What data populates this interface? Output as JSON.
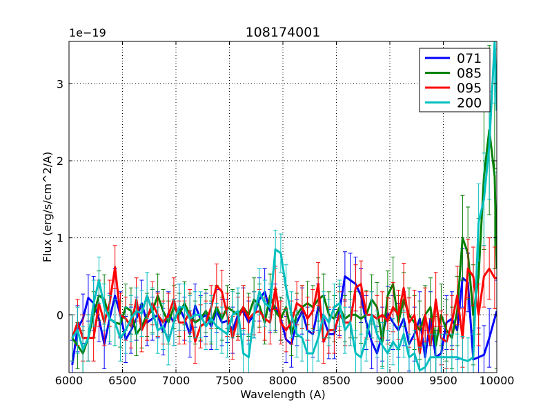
{
  "chart_data": {
    "type": "line",
    "title": "108174001",
    "xlabel": "Wavelength (A)",
    "ylabel": "Flux (erg/s/cm^2/A)",
    "y_scale_label": "1e−19",
    "xlim": [
      6000,
      10000
    ],
    "ylim": [
      -0.75,
      3.55
    ],
    "xticks": [
      6000,
      6500,
      7000,
      7500,
      8000,
      8500,
      9000,
      9500,
      10000
    ],
    "yticks": [
      0,
      1,
      2,
      3
    ],
    "grid": true,
    "legend_position": "top-right",
    "series": [
      {
        "name": "071",
        "color": "#0000ff",
        "x": [
          6030,
          6080,
          6130,
          6180,
          6230,
          6280,
          6330,
          6380,
          6430,
          6480,
          6530,
          6580,
          6630,
          6680,
          6730,
          6780,
          6830,
          6880,
          6930,
          6980,
          7030,
          7080,
          7130,
          7180,
          7230,
          7280,
          7330,
          7380,
          7430,
          7480,
          7530,
          7580,
          7630,
          7680,
          7730,
          7780,
          7830,
          7880,
          7930,
          7980,
          8030,
          8080,
          8130,
          8180,
          8230,
          8280,
          8330,
          8380,
          8430,
          8480,
          8530,
          8580,
          8630,
          8680,
          8730,
          8780,
          8830,
          8880,
          8930,
          8980,
          9030,
          9080,
          9130,
          9180,
          9230,
          9280,
          9330,
          9380,
          9430,
          9480,
          9530,
          9580,
          9630,
          9680,
          9730,
          9780,
          9830,
          9880,
          9930,
          10000
        ],
        "values": [
          -0.65,
          -0.18,
          -0.05,
          0.22,
          0.15,
          -0.05,
          -0.38,
          -0.05,
          0.25,
          0.0,
          -0.32,
          -0.2,
          -0.05,
          0.15,
          -0.1,
          -0.05,
          0.0,
          -0.22,
          0.02,
          -0.1,
          0.1,
          -0.05,
          -0.25,
          0.12,
          -0.05,
          0.0,
          -0.15,
          0.05,
          -0.1,
          -0.08,
          -0.2,
          0.0,
          0.05,
          -0.1,
          0.0,
          0.2,
          0.3,
          0.05,
          0.1,
          -0.05,
          -0.32,
          -0.38,
          -0.1,
          0.05,
          -0.2,
          -0.25,
          0.1,
          -0.05,
          -0.25,
          -0.25,
          0.05,
          0.5,
          0.45,
          0.4,
          0.25,
          -0.1,
          -0.35,
          -0.5,
          -0.25,
          0.02,
          -0.1,
          -0.2,
          -0.05,
          -0.38,
          -0.25,
          -0.05,
          -0.55,
          -0.05,
          -0.55,
          -0.5,
          -0.1,
          -0.05,
          -0.2,
          0.48,
          0.42,
          -0.58,
          -0.55,
          -0.52,
          -0.3,
          0.05
        ],
        "errors": [
          0.32,
          0.3,
          0.32,
          0.3,
          0.35,
          0.3,
          0.32,
          0.33,
          0.35,
          0.3,
          0.3,
          0.3,
          0.28,
          0.3,
          0.3,
          0.28,
          0.3,
          0.3,
          0.28,
          0.3,
          0.3,
          0.28,
          0.3,
          0.28,
          0.3,
          0.28,
          0.3,
          0.28,
          0.3,
          0.28,
          0.3,
          0.28,
          0.3,
          0.28,
          0.3,
          0.28,
          0.3,
          0.28,
          0.3,
          0.28,
          0.3,
          0.3,
          0.3,
          0.3,
          0.3,
          0.3,
          0.3,
          0.3,
          0.32,
          0.32,
          0.32,
          0.32,
          0.35,
          0.35,
          0.35,
          0.35,
          0.35,
          0.35,
          0.35,
          0.35,
          0.35,
          0.35,
          0.35,
          0.35,
          0.35,
          0.35,
          0.35,
          0.35,
          0.35,
          0.35,
          0.35,
          0.35,
          0.38,
          0.38,
          0.38,
          0.38,
          0.38,
          0.38,
          0.38,
          0.4
        ]
      },
      {
        "name": "085",
        "color": "#008000",
        "x": [
          6030,
          6080,
          6130,
          6180,
          6230,
          6280,
          6330,
          6380,
          6430,
          6480,
          6530,
          6580,
          6630,
          6680,
          6730,
          6780,
          6830,
          6880,
          6930,
          6980,
          7030,
          7080,
          7130,
          7180,
          7230,
          7280,
          7330,
          7380,
          7430,
          7480,
          7530,
          7580,
          7630,
          7680,
          7730,
          7780,
          7830,
          7880,
          7930,
          7980,
          8030,
          8080,
          8130,
          8180,
          8230,
          8280,
          8330,
          8380,
          8430,
          8480,
          8530,
          8580,
          8630,
          8680,
          8730,
          8780,
          8830,
          8880,
          8930,
          8980,
          9030,
          9080,
          9130,
          9180,
          9230,
          9280,
          9330,
          9380,
          9430,
          9480,
          9530,
          9580,
          9630,
          9680,
          9730,
          9780,
          9830,
          9880,
          9930,
          9980,
          10000
        ],
        "values": [
          -0.3,
          -0.4,
          -0.5,
          -0.3,
          0.0,
          0.25,
          0.2,
          -0.05,
          -0.1,
          -0.12,
          0.1,
          0.05,
          -0.25,
          -0.15,
          0.0,
          0.05,
          0.25,
          0.05,
          -0.1,
          0.1,
          0.0,
          0.15,
          0.0,
          -0.1,
          -0.05,
          0.05,
          -0.1,
          0.1,
          -0.05,
          0.1,
          0.05,
          0.0,
          0.1,
          0.0,
          0.2,
          0.12,
          -0.1,
          0.25,
          0.05,
          -0.05,
          0.1,
          -0.25,
          0.0,
          0.1,
          0.15,
          0.1,
          0.2,
          0.25,
          0.0,
          -0.05,
          0.1,
          -0.05,
          0.0,
          0.0,
          -0.05,
          0.0,
          0.2,
          0.1,
          -0.35,
          0.25,
          0.4,
          -0.1,
          0.2,
          0.0,
          -0.1,
          -0.2,
          0.0,
          0.1,
          -0.4,
          0.0,
          -0.2,
          -0.3,
          0.05,
          1.0,
          0.8,
          0.0,
          0.5,
          1.8,
          2.4,
          1.8,
          0.6
        ],
        "errors": [
          0.3,
          0.3,
          0.3,
          0.3,
          0.3,
          0.32,
          0.32,
          0.3,
          0.3,
          0.3,
          0.3,
          0.3,
          0.28,
          0.28,
          0.28,
          0.28,
          0.28,
          0.28,
          0.28,
          0.28,
          0.28,
          0.28,
          0.28,
          0.28,
          0.28,
          0.28,
          0.28,
          0.28,
          0.28,
          0.28,
          0.28,
          0.28,
          0.28,
          0.28,
          0.28,
          0.28,
          0.28,
          0.28,
          0.28,
          0.28,
          0.28,
          0.28,
          0.28,
          0.28,
          0.28,
          0.28,
          0.28,
          0.28,
          0.3,
          0.3,
          0.3,
          0.3,
          0.3,
          0.3,
          0.32,
          0.32,
          0.32,
          0.32,
          0.32,
          0.32,
          0.35,
          0.35,
          0.35,
          0.35,
          0.35,
          0.38,
          0.38,
          0.38,
          0.38,
          0.4,
          0.4,
          0.4,
          0.45,
          0.55,
          0.6,
          0.65,
          0.75,
          0.95,
          1.1,
          1.2,
          1.3
        ]
      },
      {
        "name": "095",
        "color": "#ff0000",
        "x": [
          6030,
          6080,
          6130,
          6180,
          6230,
          6280,
          6330,
          6380,
          6430,
          6480,
          6530,
          6580,
          6630,
          6680,
          6730,
          6780,
          6830,
          6880,
          6930,
          6980,
          7030,
          7080,
          7130,
          7180,
          7230,
          7280,
          7330,
          7380,
          7430,
          7480,
          7530,
          7580,
          7630,
          7680,
          7730,
          7780,
          7830,
          7880,
          7930,
          7980,
          8030,
          8080,
          8130,
          8180,
          8230,
          8280,
          8330,
          8380,
          8430,
          8480,
          8530,
          8580,
          8630,
          8680,
          8730,
          8780,
          8830,
          8880,
          8930,
          8980,
          9030,
          9080,
          9130,
          9180,
          9230,
          9280,
          9330,
          9380,
          9430,
          9480,
          9530,
          9580,
          9630,
          9680,
          9730,
          9780,
          9830,
          9880,
          9930,
          9980,
          10000
        ],
        "values": [
          -0.3,
          -0.1,
          -0.3,
          -0.3,
          -0.3,
          0.15,
          -0.1,
          0.15,
          0.62,
          0.0,
          -0.05,
          -0.15,
          0.2,
          -0.2,
          -0.05,
          0.15,
          0.0,
          -0.1,
          0.0,
          0.2,
          -0.1,
          -0.1,
          0.05,
          -0.35,
          -0.15,
          -0.1,
          0.1,
          0.38,
          0.3,
          0.0,
          -0.3,
          -0.05,
          0.1,
          -0.05,
          0.02,
          0.05,
          -0.05,
          -0.1,
          0.35,
          -0.1,
          -0.2,
          -0.1,
          0.15,
          0.1,
          -0.05,
          0.05,
          0.4,
          -0.35,
          -0.2,
          -0.2,
          0.0,
          -0.1,
          -0.1,
          0.35,
          0.4,
          0.0,
          0.0,
          -0.05,
          0.0,
          -0.08,
          0.1,
          0.0,
          0.35,
          -0.1,
          0.0,
          -0.5,
          0.0,
          -0.4,
          0.2,
          -0.3,
          -0.35,
          -0.1,
          0.25,
          -0.3,
          0.6,
          0.5,
          0.0,
          0.5,
          0.6,
          0.48,
          0.48
        ],
        "errors": [
          0.3,
          0.3,
          0.3,
          0.3,
          0.3,
          0.3,
          0.3,
          0.3,
          0.28,
          0.28,
          0.28,
          0.28,
          0.28,
          0.28,
          0.28,
          0.28,
          0.28,
          0.28,
          0.28,
          0.28,
          0.28,
          0.28,
          0.28,
          0.28,
          0.28,
          0.28,
          0.28,
          0.28,
          0.28,
          0.28,
          0.28,
          0.28,
          0.28,
          0.28,
          0.28,
          0.28,
          0.28,
          0.28,
          0.28,
          0.28,
          0.28,
          0.28,
          0.28,
          0.28,
          0.28,
          0.28,
          0.28,
          0.28,
          0.3,
          0.3,
          0.3,
          0.3,
          0.3,
          0.3,
          0.3,
          0.3,
          0.3,
          0.3,
          0.3,
          0.3,
          0.32,
          0.32,
          0.32,
          0.32,
          0.32,
          0.35,
          0.35,
          0.35,
          0.35,
          0.35,
          0.35,
          0.35,
          0.38,
          0.38,
          0.38,
          0.38,
          0.4,
          0.4,
          0.4,
          0.4,
          0.4
        ]
      },
      {
        "name": "200",
        "color": "#00bfbf",
        "x": [
          6030,
          6080,
          6130,
          6180,
          6230,
          6280,
          6330,
          6380,
          6430,
          6480,
          6530,
          6580,
          6630,
          6680,
          6730,
          6780,
          6830,
          6880,
          6930,
          6980,
          7030,
          7080,
          7130,
          7180,
          7230,
          7280,
          7330,
          7380,
          7430,
          7480,
          7530,
          7580,
          7630,
          7680,
          7730,
          7780,
          7830,
          7880,
          7930,
          7980,
          8030,
          8080,
          8130,
          8180,
          8230,
          8280,
          8330,
          8380,
          8430,
          8480,
          8530,
          8580,
          8630,
          8680,
          8730,
          8780,
          8830,
          8880,
          8930,
          8980,
          9030,
          9080,
          9130,
          9180,
          9230,
          9280,
          9330,
          9380,
          9430,
          9480,
          9530,
          9580,
          9630,
          9680,
          9730,
          9780,
          9830,
          9880,
          9930,
          9980,
          10000
        ],
        "values": [
          -0.3,
          -0.2,
          -0.45,
          -0.3,
          0.15,
          0.45,
          0.1,
          -0.05,
          -0.1,
          -0.3,
          -0.2,
          -0.05,
          0.05,
          0.02,
          0.25,
          0.05,
          -0.2,
          -0.15,
          -0.35,
          -0.1,
          0.1,
          0.1,
          -0.05,
          0.0,
          0.0,
          -0.15,
          -0.05,
          -0.15,
          -0.2,
          -0.25,
          0.0,
          0.05,
          -0.5,
          -0.55,
          0.0,
          0.3,
          0.15,
          0.1,
          0.85,
          0.8,
          0.35,
          0.0,
          -0.25,
          -0.3,
          -0.5,
          -0.5,
          -0.3,
          0.0,
          -0.1,
          0.1,
          0.15,
          -0.2,
          -0.1,
          -0.5,
          -0.55,
          -0.3,
          0.0,
          -0.25,
          -0.4,
          -0.5,
          -0.35,
          -0.45,
          -0.25,
          -0.55,
          -0.5,
          -0.72,
          -0.68,
          -0.55,
          -0.55,
          -0.55,
          -0.55,
          -0.55,
          -0.55,
          -0.58,
          -0.6,
          -0.55,
          1.2,
          1.5,
          2.2,
          3.55,
          2.65
        ],
        "errors": [
          0.3,
          0.3,
          0.3,
          0.3,
          0.3,
          0.3,
          0.3,
          0.3,
          0.3,
          0.3,
          0.3,
          0.3,
          0.3,
          0.3,
          0.3,
          0.3,
          0.3,
          0.3,
          0.3,
          0.3,
          0.3,
          0.3,
          0.3,
          0.3,
          0.3,
          0.3,
          0.3,
          0.3,
          0.3,
          0.3,
          0.3,
          0.3,
          0.3,
          0.3,
          0.3,
          0.3,
          0.3,
          0.3,
          0.25,
          0.25,
          0.3,
          0.3,
          0.3,
          0.3,
          0.3,
          0.3,
          0.3,
          0.3,
          0.3,
          0.3,
          0.3,
          0.3,
          0.3,
          0.3,
          0.3,
          0.3,
          0.3,
          0.3,
          0.3,
          0.3,
          0.3,
          0.3,
          0.3,
          0.3,
          0.3,
          0.3,
          0.3,
          0.3,
          0.3,
          0.3,
          0.3,
          0.3,
          0.3,
          0.3,
          0.3,
          0.3,
          0.5,
          0.6,
          0.7,
          0.8,
          0.8
        ]
      }
    ]
  }
}
